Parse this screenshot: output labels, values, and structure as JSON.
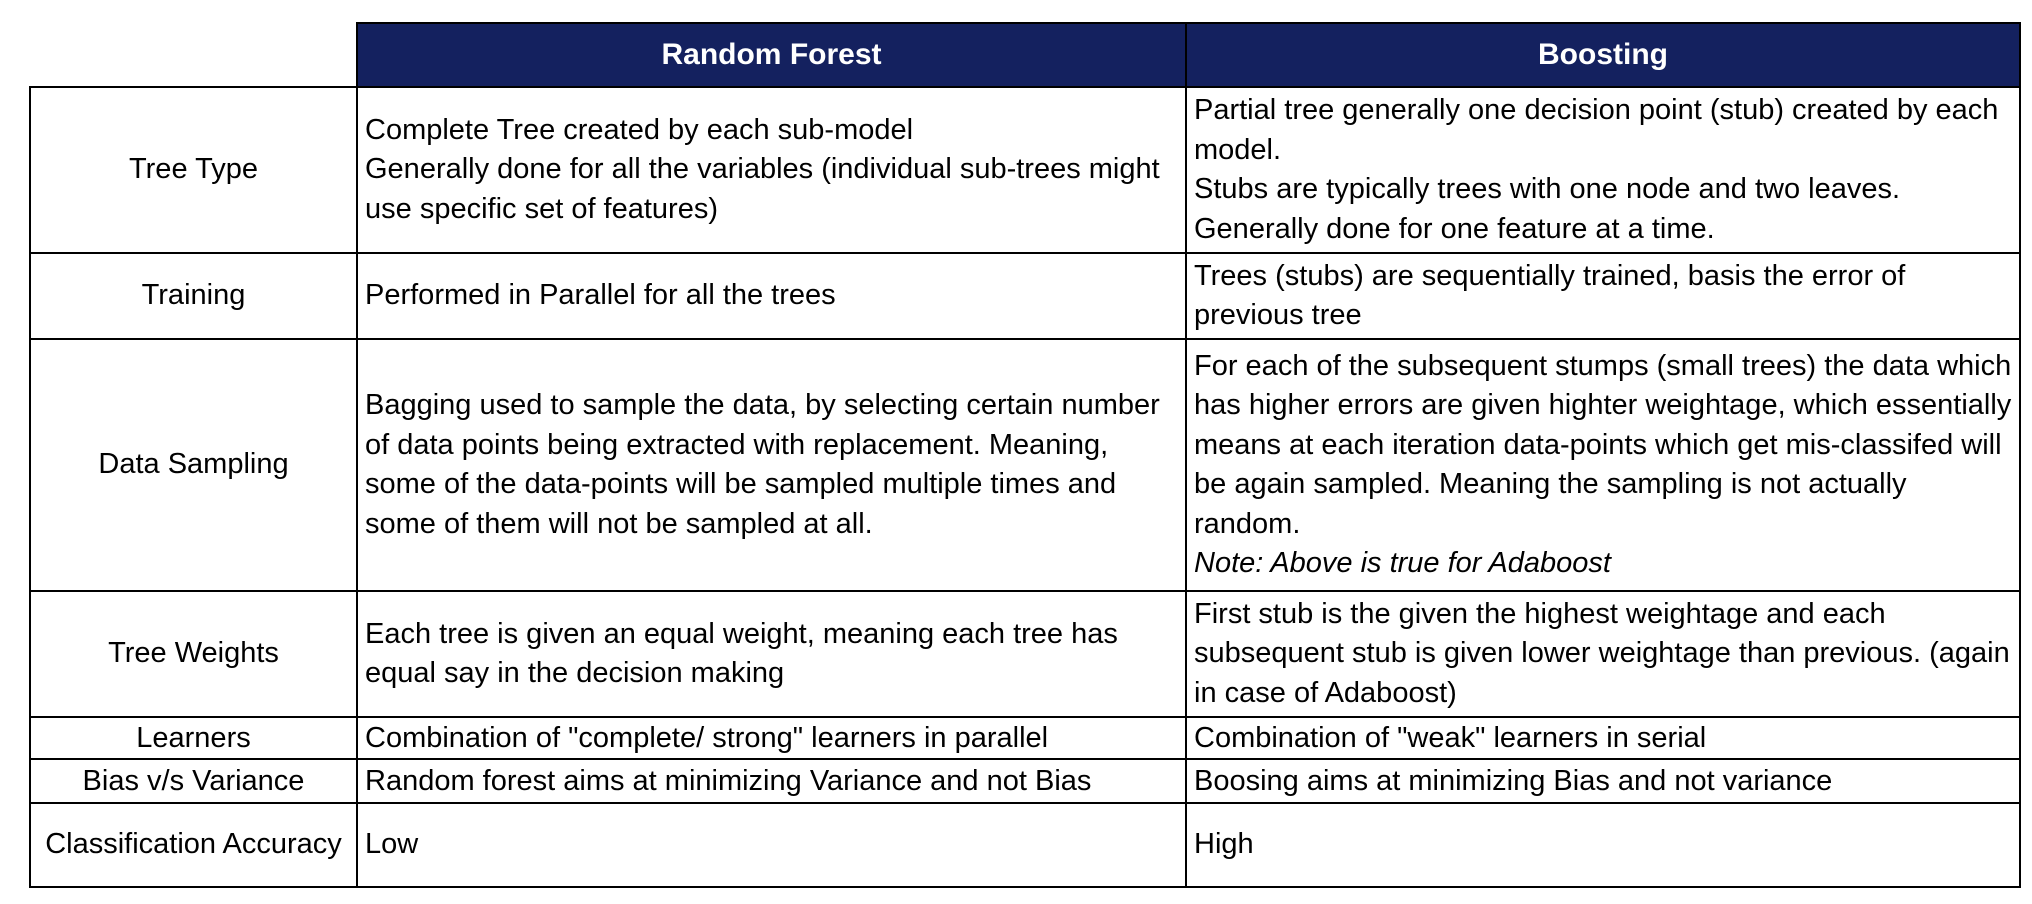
{
  "headers": {
    "col1": "Random Forest",
    "col2": "Boosting"
  },
  "rows": [
    {
      "label": "Tree Type",
      "random_forest": [
        "Complete Tree created by each sub-model",
        "Generally done for all the variables (individual sub-trees might use specific set of features)"
      ],
      "boosting": [
        "Partial tree generally one decision point (stub) created by each model.",
        "Stubs are typically trees with one node and two leaves.",
        "Generally done for one feature at a time."
      ]
    },
    {
      "label": "Training",
      "random_forest": [
        "Performed in Parallel for all the trees"
      ],
      "boosting": [
        "Trees (stubs) are sequentially trained, basis the error of previous tree"
      ]
    },
    {
      "label": "Data Sampling",
      "random_forest": [
        "Bagging used to sample the data, by selecting certain number of data points being extracted with replacement. Meaning, some of the data-points will be sampled multiple times and some of them will not be sampled at all."
      ],
      "boosting": [
        "For each of the subsequent stumps (small trees) the data which has higher errors are given highter weightage, which essentially means at each iteration data-points which get mis-classifed will be again sampled. Meaning the sampling is not actually random."
      ],
      "boosting_note": "Note: Above is true for Adaboost"
    },
    {
      "label": "Tree Weights",
      "random_forest": [
        "Each tree is given an equal weight, meaning each tree has equal say in the decision making"
      ],
      "boosting": [
        "First stub is the given the highest weightage and each subsequent stub is given lower weightage than previous. (again in case of Adaboost)"
      ]
    },
    {
      "label": "Learners",
      "random_forest": [
        "Combination of \"complete/ strong\" learners in parallel"
      ],
      "boosting": [
        "Combination of \"weak\" learners in serial"
      ]
    },
    {
      "label": "Bias v/s Variance",
      "random_forest": [
        "Random forest aims at minimizing Variance and not Bias"
      ],
      "boosting": [
        "Boosing aims at minimizing Bias and not variance"
      ]
    },
    {
      "label": "Classification Accuracy",
      "random_forest": [
        "Low"
      ],
      "boosting": [
        "High"
      ]
    }
  ]
}
